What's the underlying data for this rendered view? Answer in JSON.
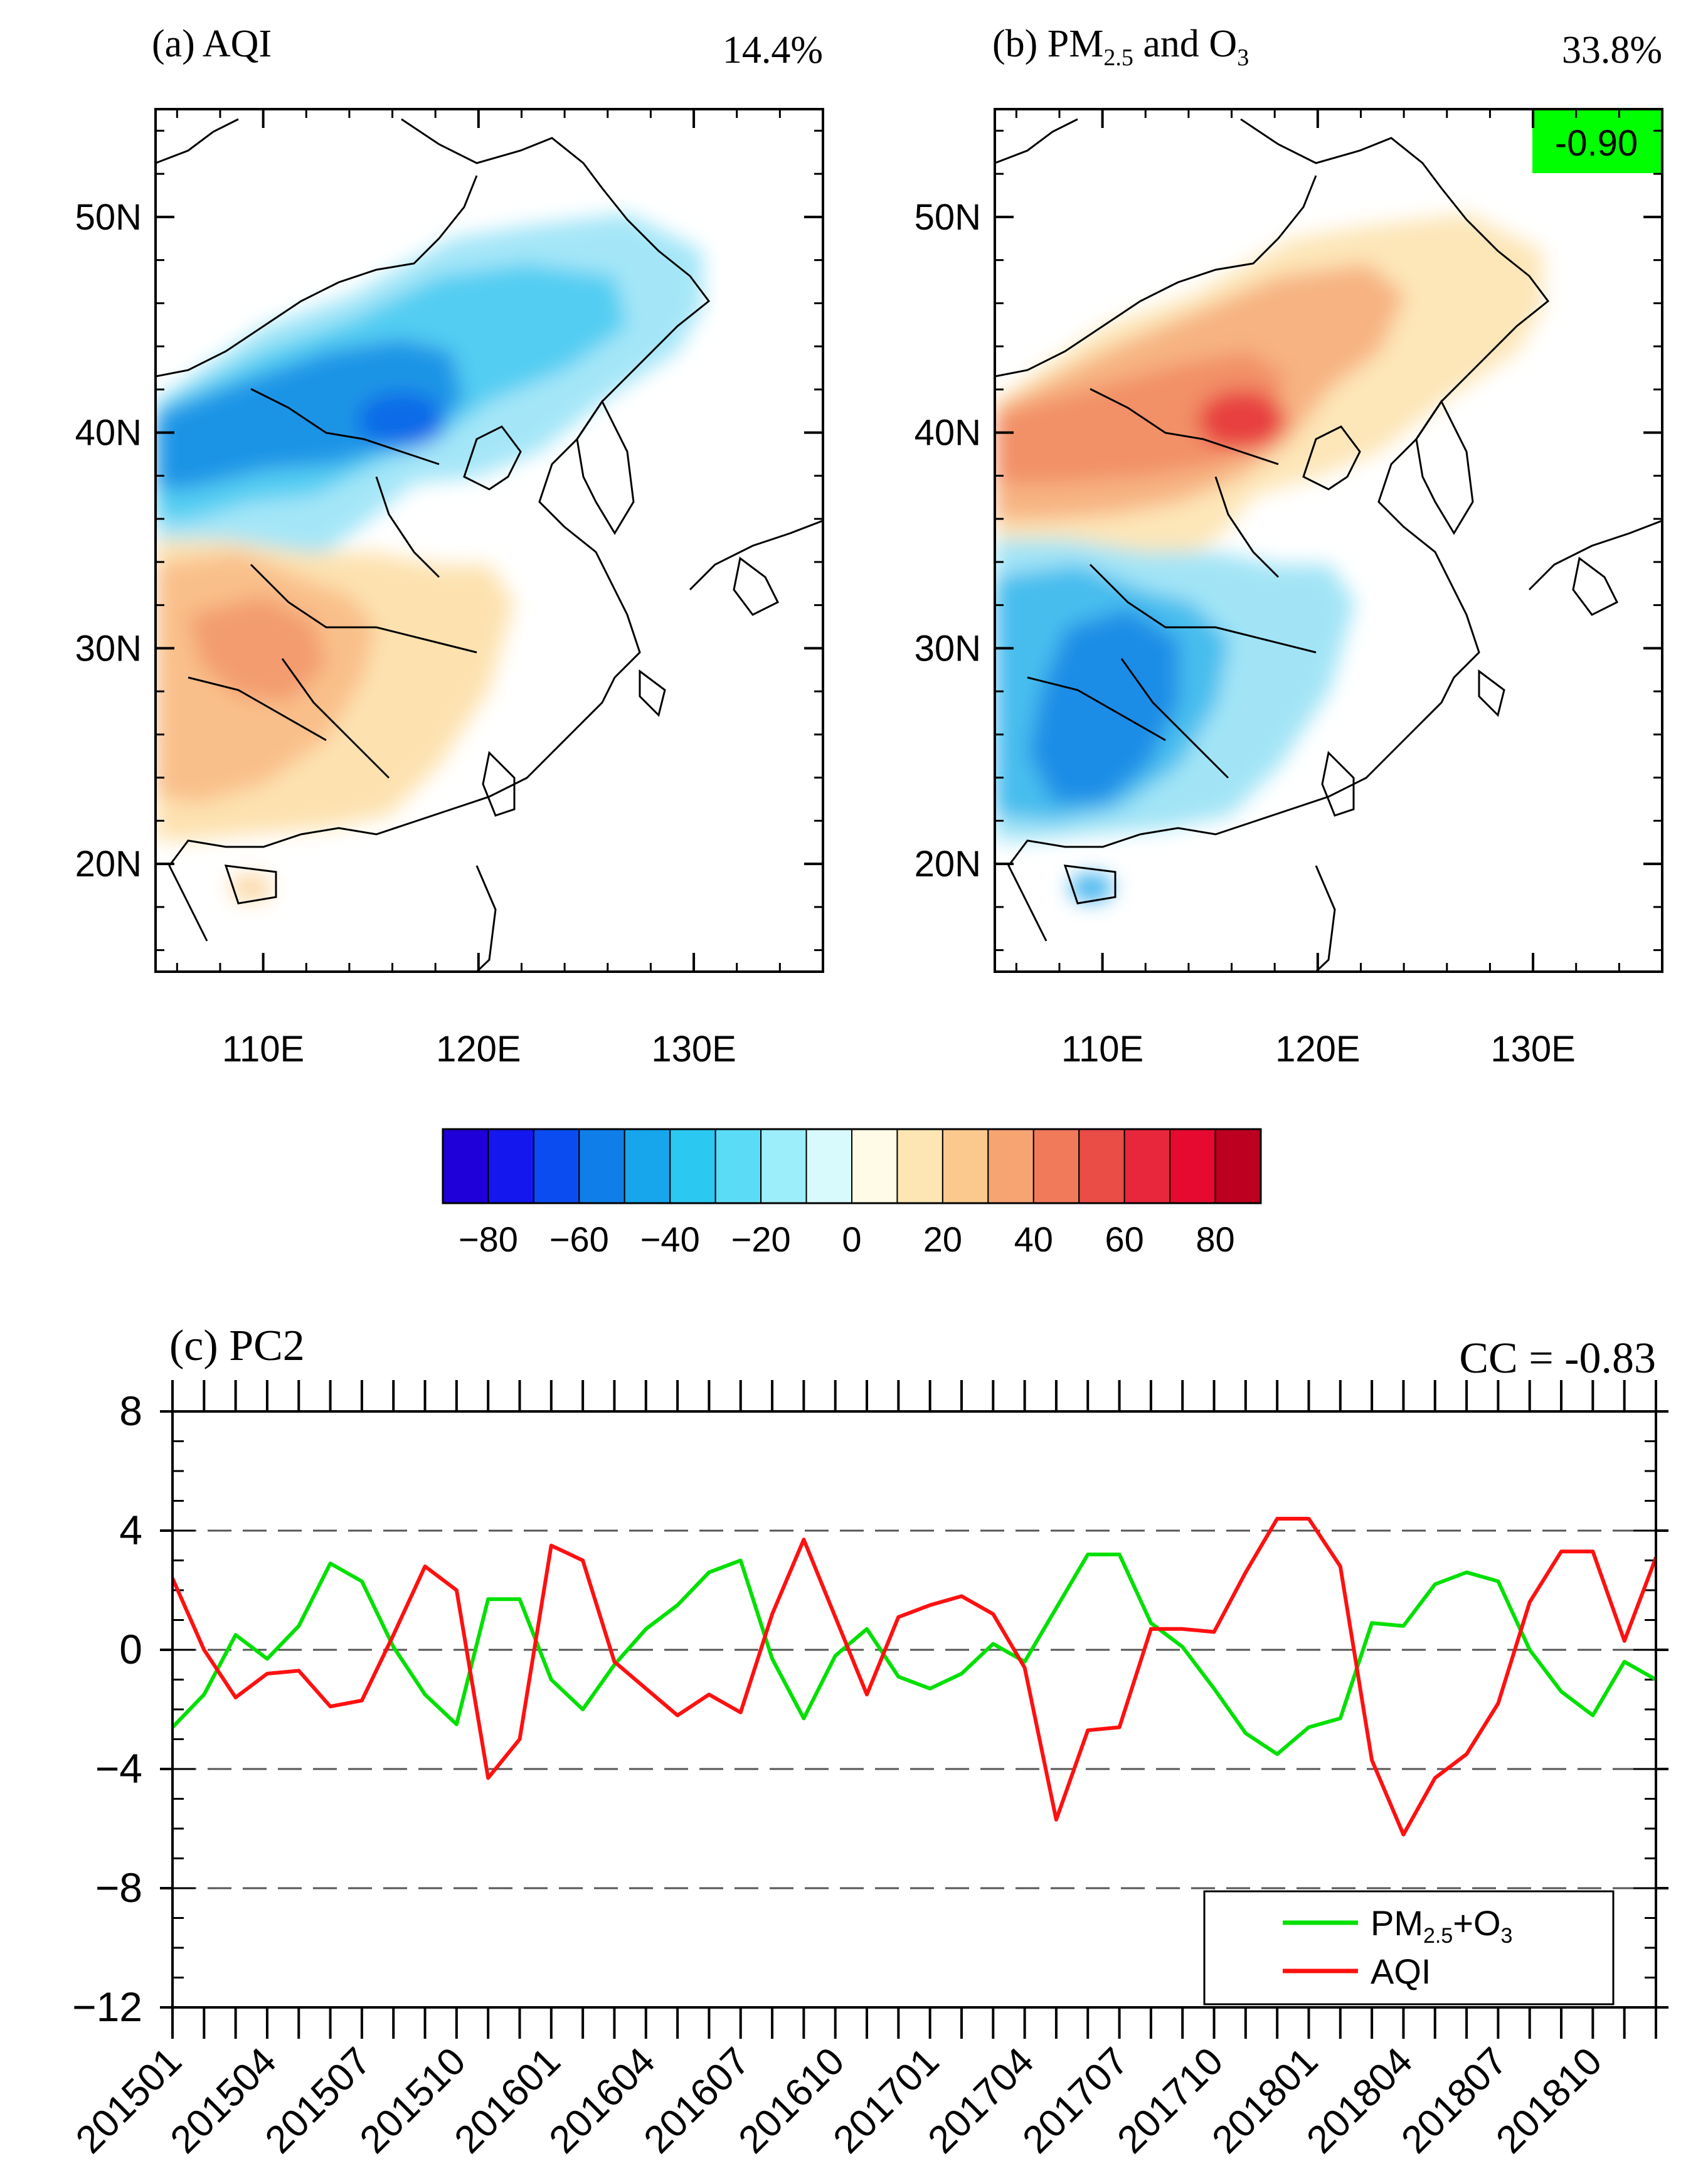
{
  "maps": [
    {
      "label": "(a) AQI",
      "percent": "14.4%",
      "x_ticks": [
        "110E",
        "120E",
        "130E"
      ],
      "y_ticks": [
        "50N",
        "40N",
        "30N",
        "20N"
      ],
      "lon_values": [
        110,
        120,
        130
      ],
      "lat_values": [
        50,
        40,
        30,
        20
      ],
      "lon_range": [
        105,
        136
      ],
      "lat_range": [
        15,
        55
      ]
    },
    {
      "label_main": "(b) PM",
      "label_sub": "2.5",
      "label_mid": " and O",
      "label_sub2": "3",
      "percent": "33.8%",
      "badge": "-0.90",
      "badge_color": "#00ff00",
      "x_ticks": [
        "110E",
        "120E",
        "130E"
      ],
      "y_ticks": [
        "50N",
        "40N",
        "30N",
        "20N"
      ],
      "lon_values": [
        110,
        120,
        130
      ],
      "lat_values": [
        50,
        40,
        30,
        20
      ],
      "lon_range": [
        105,
        136
      ],
      "lat_range": [
        15,
        55
      ]
    }
  ],
  "colorbar": {
    "colors": [
      "#1f00d8",
      "#1418ef",
      "#0a4cf0",
      "#0f7ee8",
      "#17a5ec",
      "#2bc8f2",
      "#5bdcf6",
      "#9ceefa",
      "#d9fafd",
      "#fffbe6",
      "#fde6b4",
      "#fbc98e",
      "#f6a472",
      "#f07a5a",
      "#ea4d45",
      "#e8263c",
      "#e60a30",
      "#be0020"
    ],
    "tick_labels": [
      "−80",
      "−60",
      "−40",
      "−20",
      "0",
      "20",
      "40",
      "60",
      "80"
    ]
  },
  "chart_data": {
    "type": "line",
    "title": "(c) PC2",
    "annotation": "CC = -0.83",
    "ylim": [
      -12,
      8
    ],
    "yticks": [
      "8",
      "4",
      "0",
      "−4",
      "−8",
      "−12"
    ],
    "ytick_values": [
      8,
      4,
      0,
      -4,
      -8,
      -12
    ],
    "dashed_lines": [
      4,
      0,
      -4,
      -8
    ],
    "xtick_labels": [
      "201501",
      "201504",
      "201507",
      "201510",
      "201601",
      "201604",
      "201607",
      "201610",
      "201701",
      "201704",
      "201707",
      "201710",
      "201801",
      "201804",
      "201807",
      "201810"
    ],
    "x_count": 48,
    "legend_placement": "bottom-right",
    "series": [
      {
        "name_main": "PM",
        "name_sub": "2.5",
        "name_mid": "+O",
        "name_sub2": "3",
        "color": "#00e000",
        "values": [
          -2.6,
          -1.5,
          0.5,
          -0.3,
          0.8,
          2.9,
          2.3,
          0.1,
          -1.5,
          -2.5,
          1.7,
          1.7,
          -1.0,
          -2.0,
          -0.5,
          0.7,
          1.5,
          2.6,
          3.0,
          -0.3,
          -2.3,
          -0.2,
          0.7,
          -0.9,
          -1.3,
          -0.8,
          0.2,
          -0.4,
          1.4,
          3.2,
          3.2,
          0.9,
          0.1,
          -1.3,
          -2.8,
          -3.5,
          -2.6,
          -2.3,
          0.9,
          0.8,
          2.2,
          2.6,
          2.3,
          0.0,
          -1.4,
          -2.2,
          -0.4,
          -1.0
        ]
      },
      {
        "name": "AQI",
        "color": "#ff1010",
        "values": [
          2.4,
          0.0,
          -1.6,
          -0.8,
          -0.7,
          -1.9,
          -1.7,
          0.5,
          2.8,
          2.0,
          -4.3,
          -3.0,
          3.5,
          3.0,
          -0.4,
          -1.3,
          -2.2,
          -1.5,
          -2.1,
          1.2,
          3.7,
          1.1,
          -1.5,
          1.1,
          1.5,
          1.8,
          1.2,
          -0.6,
          -5.7,
          -2.7,
          -2.6,
          0.7,
          0.7,
          0.6,
          2.6,
          4.4,
          4.4,
          2.8,
          -3.7,
          -6.2,
          -4.3,
          -3.5,
          -1.8,
          1.6,
          3.3,
          3.3,
          0.3,
          3.1
        ]
      }
    ]
  }
}
